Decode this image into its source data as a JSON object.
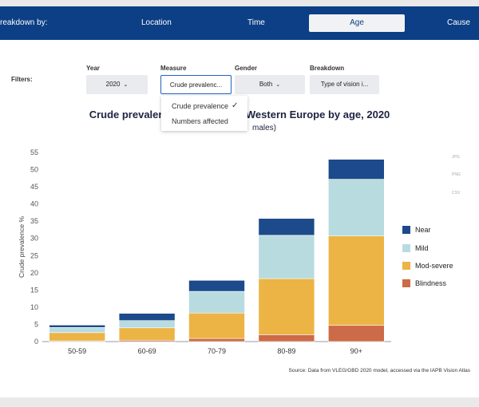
{
  "nav": {
    "breakdown_label": "reakdown by:",
    "tabs": [
      "Location",
      "Time",
      "Age",
      "Cause"
    ],
    "active_tab": "Age"
  },
  "filters": {
    "label": "Filters:",
    "year": {
      "label": "Year",
      "value": "2020"
    },
    "measure": {
      "label": "Measure",
      "value": "Crude prevalenc..."
    },
    "gender": {
      "label": "Gender",
      "value": "Both"
    },
    "breakdown": {
      "label": "Breakdown",
      "value": "Type of vision i..."
    }
  },
  "measure_dropdown": {
    "options": [
      "Crude prevalence",
      "Numbers affected"
    ],
    "selected": "Crude prevalence"
  },
  "chart_title": {
    "left": "Crude prevalen",
    "right": "n Western Europe by age, 2020",
    "subtitle_tail": "males)"
  },
  "export": [
    "JPG",
    "PNG",
    "CSV"
  ],
  "source": "Source: Data from VLEG/GBD 2020 model, accessed via the IAPB Vision Atlas",
  "colors": {
    "nav_bg": "#0c3f85",
    "Near": "#1c4a8a",
    "Mild": "#b8dbe0",
    "Mod-severe": "#ecb445",
    "Blindness": "#cc6b48"
  },
  "chart_data": {
    "type": "bar",
    "stacked": true,
    "categories": [
      "50-59",
      "60-69",
      "70-79",
      "80-89",
      "90+"
    ],
    "ylabel": "Crude prevalence %",
    "ylim": [
      0,
      55
    ],
    "yticks": [
      0,
      5,
      10,
      15,
      20,
      25,
      30,
      35,
      40,
      45,
      50,
      55
    ],
    "series": [
      {
        "name": "Blindness",
        "values": [
          0.2,
          0.4,
          0.9,
          2.0,
          4.7
        ]
      },
      {
        "name": "Mod-severe",
        "values": [
          2.4,
          3.6,
          7.4,
          16.3,
          26.0
        ]
      },
      {
        "name": "Mild",
        "values": [
          1.5,
          2.1,
          6.3,
          12.6,
          16.5
        ]
      },
      {
        "name": "Near",
        "values": [
          0.7,
          2.1,
          3.2,
          4.9,
          5.8
        ]
      }
    ],
    "legend_order": [
      "Near",
      "Mild",
      "Mod-severe",
      "Blindness"
    ],
    "legend_position": "right",
    "grid": false
  }
}
